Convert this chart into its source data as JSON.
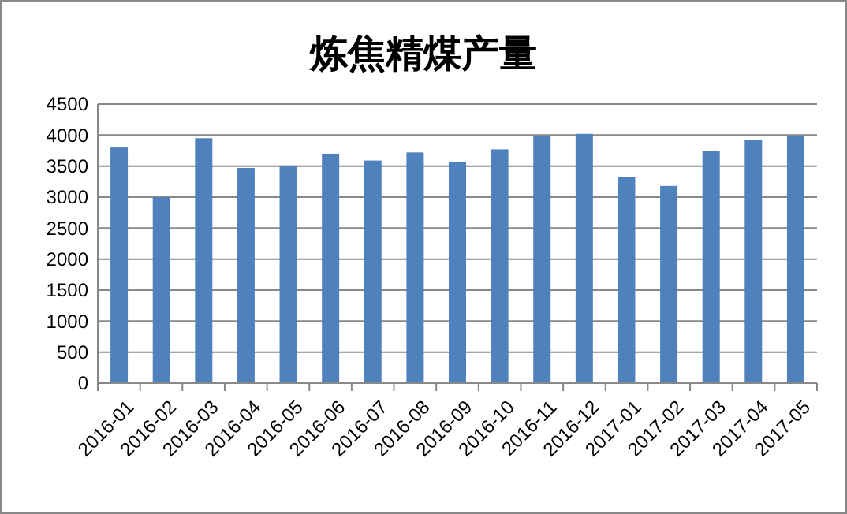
{
  "chart_data": {
    "type": "bar",
    "title": "炼焦精煤产量",
    "categories": [
      "2016-01",
      "2016-02",
      "2016-03",
      "2016-04",
      "2016-05",
      "2016-06",
      "2016-07",
      "2016-08",
      "2016-09",
      "2016-10",
      "2016-11",
      "2016-12",
      "2017-01",
      "2017-02",
      "2017-03",
      "2017-04",
      "2017-05"
    ],
    "values": [
      3800,
      3000,
      3950,
      3470,
      3510,
      3700,
      3590,
      3720,
      3560,
      3770,
      3990,
      4020,
      3330,
      3180,
      3740,
      3920,
      3980
    ],
    "color": "#4f81bd",
    "ylim": [
      0,
      4500
    ],
    "yticks": [
      0,
      500,
      1000,
      1500,
      2000,
      2500,
      3000,
      3500,
      4000,
      4500
    ],
    "grid": "y"
  }
}
